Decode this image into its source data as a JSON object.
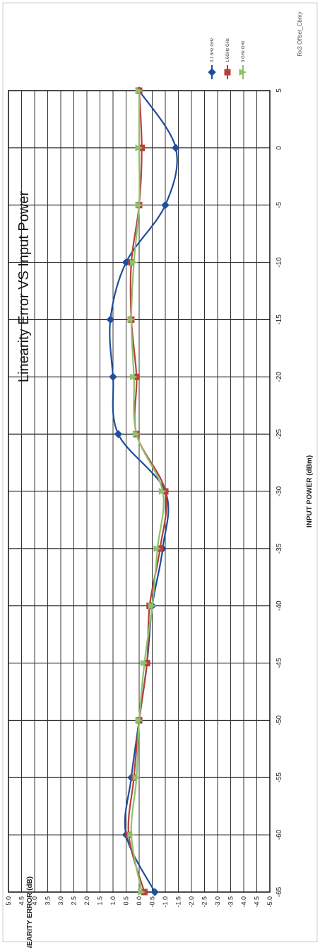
{
  "chart_data": {
    "type": "line",
    "title": "Linearity Error VS Input Power",
    "header": "Rx3 Offset_Cbmy",
    "xlabel": "INPUT POWER (dBm)",
    "ylabel": "LINEARITY ERROR (dB)",
    "x": [
      -65,
      -60,
      -55,
      -50,
      -45,
      -40,
      -35,
      -30,
      -25,
      -20,
      -15,
      -10,
      -5,
      0,
      5
    ],
    "xlim": [
      -65,
      5
    ],
    "ylim": [
      -5,
      5
    ],
    "x_ticks": [
      "-65",
      "-60",
      "-55",
      "-50",
      "-45",
      "-40",
      "-35",
      "-30",
      "-25",
      "-20",
      "-15",
      "-10",
      "-5",
      "0",
      "5"
    ],
    "y_ticks": [
      "5.0",
      "4.5",
      "4.0",
      "3.5",
      "3.0",
      "2.5",
      "2.0",
      "1.5",
      "1.0",
      "0.5",
      "0.0",
      "-0.5",
      "-1.0",
      "-1.5",
      "-2.0",
      "-2.5",
      "-3.0",
      "-3.5",
      "-4.0",
      "-4.5",
      "-5.0"
    ],
    "grid": true,
    "legend_position": "top-right",
    "series": [
      {
        "name": "0.1.5Hz GHz",
        "color": "#1f4e9c",
        "marker": "diamond",
        "values": [
          -0.6,
          0.5,
          0.3,
          0.0,
          -0.3,
          -0.5,
          -0.9,
          -1.0,
          0.8,
          1.0,
          1.1,
          0.5,
          -1.0,
          -1.4,
          0.0
        ]
      },
      {
        "name": "1.6GHz GHz",
        "color": "#b5403a",
        "marker": "square",
        "values": [
          -0.2,
          0.4,
          0.2,
          0.0,
          -0.3,
          -0.4,
          -0.8,
          -1.0,
          0.1,
          0.1,
          0.3,
          0.3,
          0.0,
          -0.1,
          0.0
        ]
      },
      {
        "name": "3 GHz GHz",
        "color": "#8dc26b",
        "marker": "triangle",
        "values": [
          -0.1,
          0.3,
          0.1,
          0.0,
          -0.2,
          -0.5,
          -0.7,
          -0.9,
          0.1,
          0.2,
          0.3,
          0.2,
          0.0,
          0.0,
          0.0
        ]
      }
    ]
  }
}
